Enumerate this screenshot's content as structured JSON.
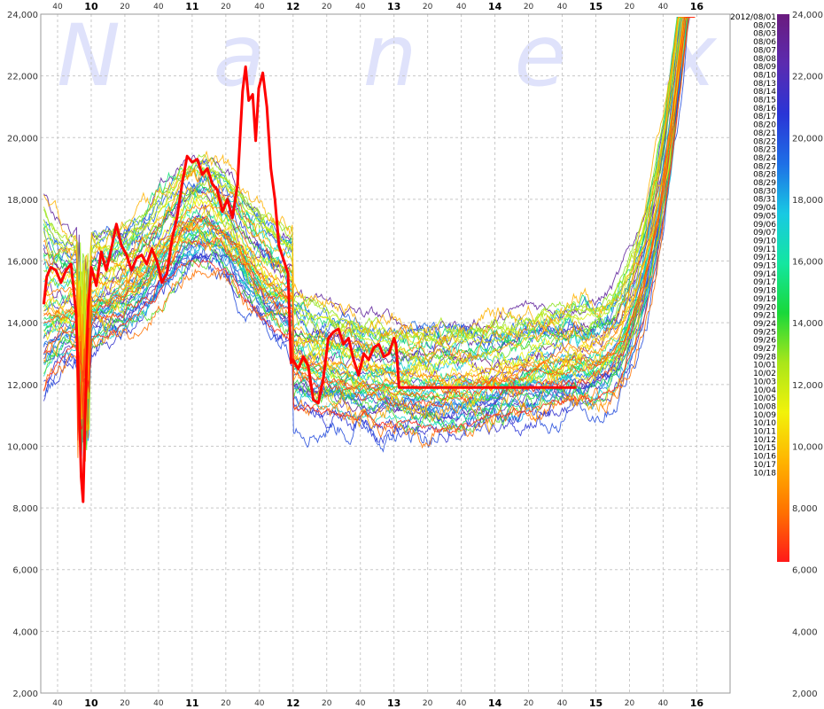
{
  "chart_data": {
    "type": "line",
    "watermark": [
      "N",
      "a",
      "n",
      "e",
      "x"
    ],
    "x_hour_labels": [
      "10",
      "11",
      "12",
      "13",
      "14",
      "15",
      "16"
    ],
    "x_minute_labels": [
      "40",
      "20",
      "40",
      "20",
      "40",
      "20",
      "40",
      "20",
      "40",
      "20",
      "40",
      "20",
      "40",
      "20",
      "40",
      "20"
    ],
    "xlim": [
      9.5,
      16.33
    ],
    "ylim": [
      2000,
      24000
    ],
    "y_ticks": [
      2000,
      4000,
      6000,
      8000,
      10000,
      12000,
      14000,
      16000,
      18000,
      20000,
      22000,
      24000
    ],
    "y_tick_labels": [
      "2,000",
      "4,000",
      "6,000",
      "8,000",
      "10,000",
      "12,000",
      "14,000",
      "16,000",
      "18,000",
      "20,000",
      "22,000",
      "24,000"
    ],
    "grid": true,
    "legend_position": "right",
    "legend_entries": [
      "2012/08/01",
      "08/02",
      "08/03",
      "08/06",
      "08/07",
      "08/08",
      "08/09",
      "08/10",
      "08/13",
      "08/14",
      "08/15",
      "08/16",
      "08/17",
      "08/20",
      "08/21",
      "08/22",
      "08/23",
      "08/24",
      "08/27",
      "08/28",
      "08/29",
      "08/30",
      "08/31",
      "09/04",
      "09/05",
      "09/06",
      "09/07",
      "09/10",
      "09/11",
      "09/12",
      "09/13",
      "09/14",
      "09/17",
      "09/18",
      "09/19",
      "09/20",
      "09/21",
      "09/24",
      "09/25",
      "09/26",
      "09/27",
      "09/28",
      "10/01",
      "10/02",
      "10/03",
      "10/04",
      "10/05",
      "10/08",
      "10/09",
      "10/10",
      "10/11",
      "10/12",
      "10/15",
      "10/16",
      "10/17",
      "10/18"
    ],
    "color_scale": [
      "#6a1b7e",
      "#5b2bb0",
      "#2a35d6",
      "#1e6fe6",
      "#19c9e3",
      "#14e6a0",
      "#19d83a",
      "#a9e61a",
      "#f2f20a",
      "#ffb300",
      "#ff7200",
      "#ff1a1a"
    ],
    "highlight_series": {
      "name": "10/18",
      "color": "#ff0000",
      "points": [
        [
          9.53,
          14600
        ],
        [
          9.56,
          15500
        ],
        [
          9.6,
          15800
        ],
        [
          9.65,
          15700
        ],
        [
          9.7,
          15300
        ],
        [
          9.75,
          15700
        ],
        [
          9.8,
          15900
        ],
        [
          9.85,
          14300
        ],
        [
          9.88,
          11500
        ],
        [
          9.9,
          9000
        ],
        [
          9.92,
          8200
        ],
        [
          9.94,
          11000
        ],
        [
          9.97,
          14500
        ],
        [
          10.0,
          15800
        ],
        [
          10.05,
          15200
        ],
        [
          10.1,
          16300
        ],
        [
          10.15,
          15700
        ],
        [
          10.2,
          16400
        ],
        [
          10.25,
          17200
        ],
        [
          10.3,
          16500
        ],
        [
          10.35,
          16200
        ],
        [
          10.4,
          15700
        ],
        [
          10.45,
          16100
        ],
        [
          10.5,
          16200
        ],
        [
          10.55,
          15900
        ],
        [
          10.6,
          16400
        ],
        [
          10.65,
          16000
        ],
        [
          10.7,
          15300
        ],
        [
          10.75,
          15600
        ],
        [
          10.8,
          16700
        ],
        [
          10.85,
          17400
        ],
        [
          10.9,
          18500
        ],
        [
          10.95,
          19400
        ],
        [
          11.0,
          19200
        ],
        [
          11.05,
          19300
        ],
        [
          11.1,
          18800
        ],
        [
          11.15,
          19000
        ],
        [
          11.2,
          18500
        ],
        [
          11.25,
          18300
        ],
        [
          11.3,
          17600
        ],
        [
          11.35,
          18000
        ],
        [
          11.4,
          17400
        ],
        [
          11.45,
          18500
        ],
        [
          11.5,
          21500
        ],
        [
          11.53,
          22300
        ],
        [
          11.56,
          21200
        ],
        [
          11.6,
          21400
        ],
        [
          11.63,
          19900
        ],
        [
          11.66,
          21600
        ],
        [
          11.7,
          22100
        ],
        [
          11.74,
          21000
        ],
        [
          11.78,
          19000
        ],
        [
          11.82,
          18000
        ],
        [
          11.86,
          16500
        ],
        [
          11.9,
          16100
        ],
        [
          11.95,
          15600
        ],
        [
          11.98,
          12700
        ],
        [
          12.0,
          12800
        ],
        [
          12.05,
          12500
        ],
        [
          12.1,
          12900
        ],
        [
          12.15,
          12600
        ],
        [
          12.2,
          11500
        ],
        [
          12.25,
          11400
        ],
        [
          12.3,
          12200
        ],
        [
          12.35,
          13500
        ],
        [
          12.4,
          13700
        ],
        [
          12.45,
          13800
        ],
        [
          12.5,
          13300
        ],
        [
          12.55,
          13500
        ],
        [
          12.6,
          12800
        ],
        [
          12.65,
          12300
        ],
        [
          12.7,
          13000
        ],
        [
          12.75,
          12800
        ],
        [
          12.8,
          13200
        ],
        [
          12.85,
          13300
        ],
        [
          12.9,
          12900
        ],
        [
          12.95,
          13000
        ],
        [
          13.0,
          13500
        ],
        [
          13.02,
          13300
        ],
        [
          13.05,
          11900
        ],
        [
          14.8,
          11900
        ]
      ]
    }
  }
}
